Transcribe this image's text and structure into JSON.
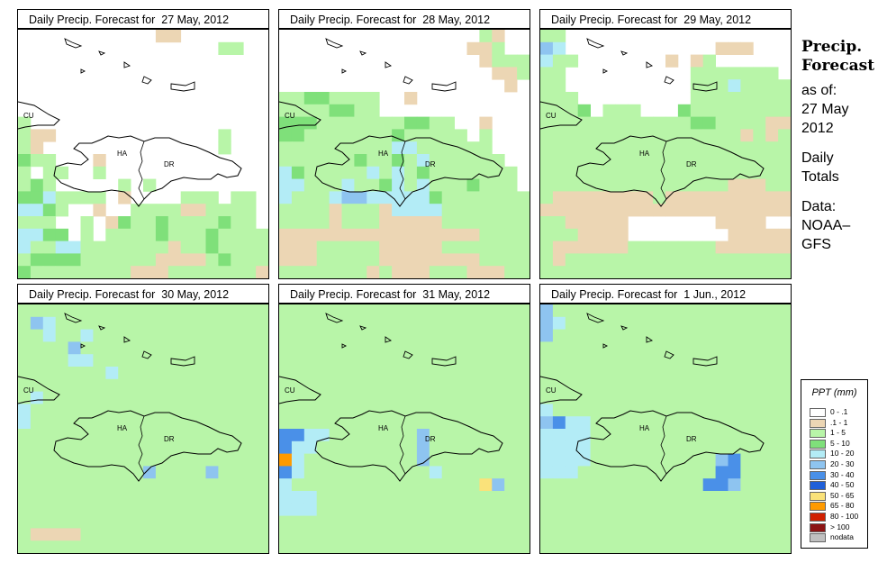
{
  "panels": [
    {
      "title": "Daily Precip. Forecast for  27 May, 2012"
    },
    {
      "title": "Daily Precip. Forecast for  28 May, 2012"
    },
    {
      "title": "Daily Precip. Forecast for  29 May, 2012"
    },
    {
      "title": "Daily Precip. Forecast for  30 May, 2012"
    },
    {
      "title": "Daily Precip. Forecast for  31 May, 2012"
    },
    {
      "title": "Daily Precip. Forecast for  1 Jun., 2012"
    }
  ],
  "map_labels": {
    "cuba": "CU",
    "haiti": "HA",
    "dominican_republic": "DR"
  },
  "sidebar": {
    "title_1": "Precip.",
    "title_2": "Forecast",
    "asof_1": "as of:",
    "asof_2": "27 May",
    "asof_3": "2012",
    "daily_1": "Daily",
    "daily_2": "Totals",
    "data_1": "Data:",
    "data_2": "NOAA–",
    "data_3": "GFS"
  },
  "legend": {
    "title": "PPT (mm)",
    "items": [
      {
        "label": "0 - .1",
        "color": "#ffffff"
      },
      {
        "label": ".1 - 1",
        "color": "#ecd6b4"
      },
      {
        "label": "1 - 5",
        "color": "#b8f5a8"
      },
      {
        "label": "5 - 10",
        "color": "#7fe07a"
      },
      {
        "label": "10 - 20",
        "color": "#b3ecf6"
      },
      {
        "label": "20 - 30",
        "color": "#8ec4f0"
      },
      {
        "label": "30 - 40",
        "color": "#4a90e8"
      },
      {
        "label": "40 - 50",
        "color": "#1f5fd8"
      },
      {
        "label": "50 - 65",
        "color": "#fae27a"
      },
      {
        "label": "65 - 80",
        "color": "#ff9a00"
      },
      {
        "label": "80 - 100",
        "color": "#d02000"
      },
      {
        "label": "> 100",
        "color": "#8c1414"
      },
      {
        "label": "nodata",
        "color": "#c0c0c0"
      }
    ]
  },
  "chart_data": {
    "type": "heatmap",
    "grid": {
      "cols": 20,
      "rows": 20
    },
    "category_codes": {
      "0": "0 - .1",
      "1": ".1 - 1",
      "2": "1 - 5",
      "3": "5 - 10",
      "4": "10 - 20",
      "5": "20 - 30",
      "6": "30 - 40",
      "7": "40 - 50",
      "8": "50 - 65",
      "9": "65 - 80"
    },
    "panels": [
      {
        "date": "27 May, 2012",
        "grid": [
          "00000000000110000000",
          "00000000000000002200",
          "00000000000000000000",
          "00000000000000000000",
          "00000000000000000000",
          "00000000000000000000",
          "00000000000000000000",
          "20000000000000000000",
          "21100000000000002000",
          "21000000000000002000",
          "32200010000000000000",
          "20220020000000000000",
          "23200000202000000000",
          "33422220100002220220",
          "44320010022221122220",
          "22200201322322223220",
          "44330202222322232222",
          "42244222222212232222",
          "23333222222111123222",
          "32222222211122222221"
        ]
      },
      {
        "date": "28 May, 2012",
        "grid": [
          "00000000000000002100",
          "00000000000000011200",
          "00000000000000001222",
          "00000000000000000112",
          "00000000000000000010",
          "22332222001000000000",
          "22223322000000000000",
          "33322222223322001000",
          "33222222232222202000",
          "22222222244222222000",
          "22222232232422222200",
          "43222224242322222220",
          "44222422342422232220",
          "42224554444432222222",
          "22221222144442222222",
          "22221222111112222222",
          "11111111111111112222",
          "11122222111112222222",
          "11122222111111112222",
          "22222221211122211122"
        ]
      },
      {
        "date": "29 May, 2012",
        "grid": [
          "22000000000000000000",
          "54000000000000111000",
          "42200000001012000000",
          "22000000000022222220",
          "22000000000022242222",
          "22200000000022222222",
          "22230222000322222222",
          "22222222222233222211",
          "22222222222222221212",
          "22222222222222222222",
          "22222222222222222222",
          "22222222222222222222",
          "22222222222222211122",
          "21111111121111111111",
          "11111111111111111111",
          "22111110000000111100",
          "22211110000000011111",
          "21111112222222111111",
          "21222222222222222222",
          "22222222222222222222"
        ]
      },
      {
        "date": "30 May, 2012",
        "grid": [
          "22222222222222222222",
          "25422222222222222222",
          "22422422222222222222",
          "22225222222222222222",
          "22224422222222222222",
          "22222224222222222222",
          "22222222222222222222",
          "24222222222222222222",
          "42222222222222222222",
          "42222222222222222222",
          "22222222222222222222",
          "22222222222222222222",
          "22222222222222222222",
          "22222222225222252222",
          "22222222222222222222",
          "22222222222222222222",
          "22222222222222222222",
          "22222222222222222222",
          "21111222222222222222",
          "22222222222222222222"
        ]
      },
      {
        "date": "31 May, 2012",
        "grid": [
          "22222222222222222222",
          "22222222222222222222",
          "22222222222222222222",
          "22222222222222222222",
          "22222222222222222222",
          "22222222222222222222",
          "22222222222222222222",
          "22222222222222222222",
          "22222222222222222222",
          "22222222222222222222",
          "66442222222522222222",
          "64422222222522222222",
          "94222222222522222222",
          "64222222222242222222",
          "42222222222222228522",
          "44422222222222222222",
          "44422222222222222222",
          "22222222222222222222",
          "22222222222222222222",
          "22222222222222222222"
        ]
      },
      {
        "date": "1 Jun., 2012",
        "grid": [
          "52222222222222222222",
          "54222222222222222222",
          "52222222222222222222",
          "22222222222222222222",
          "22222222222222222222",
          "22222222222222222222",
          "22222222222222222222",
          "22222222222222222222",
          "42222222222222222222",
          "56442222222222222222",
          "44442222222222222222",
          "44442222222222222222",
          "44442222222222562222",
          "44422222222222662222",
          "22222222222226652222",
          "22222222222222222222",
          "22222222222222222222",
          "22222222222222222222",
          "22222222222222222222",
          "22222222222222222222"
        ]
      }
    ]
  }
}
